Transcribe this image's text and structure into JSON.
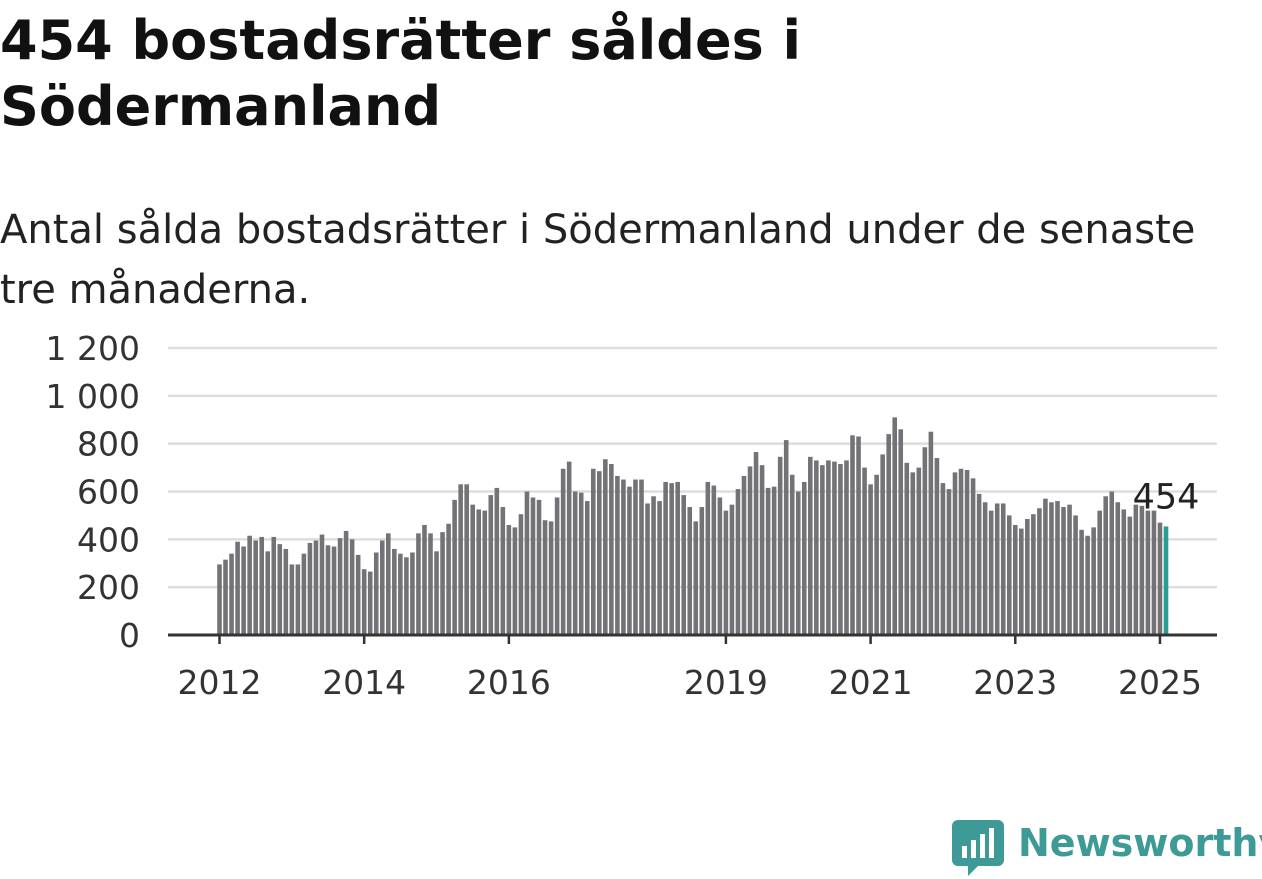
{
  "header": {
    "title": "454 bostadsrätter såldes i Södermanland",
    "subtitle": "Antal sålda bostadsrätter i Södermanland under de senaste tre månaderna."
  },
  "brand": {
    "name": "Newsworthy",
    "icon": "newsworthy-logo-icon",
    "color": "#3d9a96"
  },
  "chart_data": {
    "type": "bar",
    "title": "",
    "xlabel": "",
    "ylabel": "",
    "ylim": [
      0,
      1200
    ],
    "yticks": [
      0,
      200,
      400,
      600,
      800,
      1000,
      1200
    ],
    "ytick_labels": [
      "0",
      "200",
      "400",
      "600",
      "800",
      "1 000",
      "1 200"
    ],
    "xtick_labels": [
      "2012",
      "2014",
      "2016",
      "2019",
      "2021",
      "2023",
      "2025"
    ],
    "grid": true,
    "bar_color": "#737276",
    "highlight_color": "#2b9c90",
    "annotation": "454",
    "start_month": "2012-01",
    "values": [
      295,
      315,
      340,
      390,
      370,
      415,
      395,
      410,
      350,
      410,
      380,
      360,
      295,
      295,
      340,
      385,
      395,
      420,
      375,
      370,
      405,
      435,
      400,
      335,
      275,
      265,
      345,
      395,
      425,
      360,
      340,
      325,
      345,
      425,
      460,
      425,
      350,
      430,
      465,
      565,
      630,
      630,
      545,
      525,
      520,
      585,
      615,
      535,
      460,
      450,
      505,
      600,
      575,
      565,
      480,
      475,
      575,
      695,
      725,
      600,
      595,
      560,
      695,
      685,
      735,
      715,
      665,
      650,
      620,
      650,
      650,
      550,
      580,
      560,
      640,
      635,
      640,
      585,
      535,
      475,
      535,
      640,
      625,
      575,
      520,
      545,
      610,
      665,
      705,
      765,
      710,
      615,
      620,
      745,
      815,
      670,
      600,
      640,
      745,
      730,
      710,
      730,
      725,
      715,
      730,
      835,
      830,
      700,
      630,
      670,
      755,
      840,
      910,
      860,
      720,
      680,
      700,
      785,
      850,
      740,
      635,
      610,
      680,
      695,
      690,
      655,
      590,
      555,
      520,
      550,
      550,
      500,
      460,
      445,
      485,
      505,
      530,
      570,
      555,
      560,
      535,
      545,
      500,
      440,
      415,
      450,
      520,
      580,
      600,
      555,
      525,
      495,
      545,
      540,
      520,
      520,
      470,
      454
    ]
  }
}
